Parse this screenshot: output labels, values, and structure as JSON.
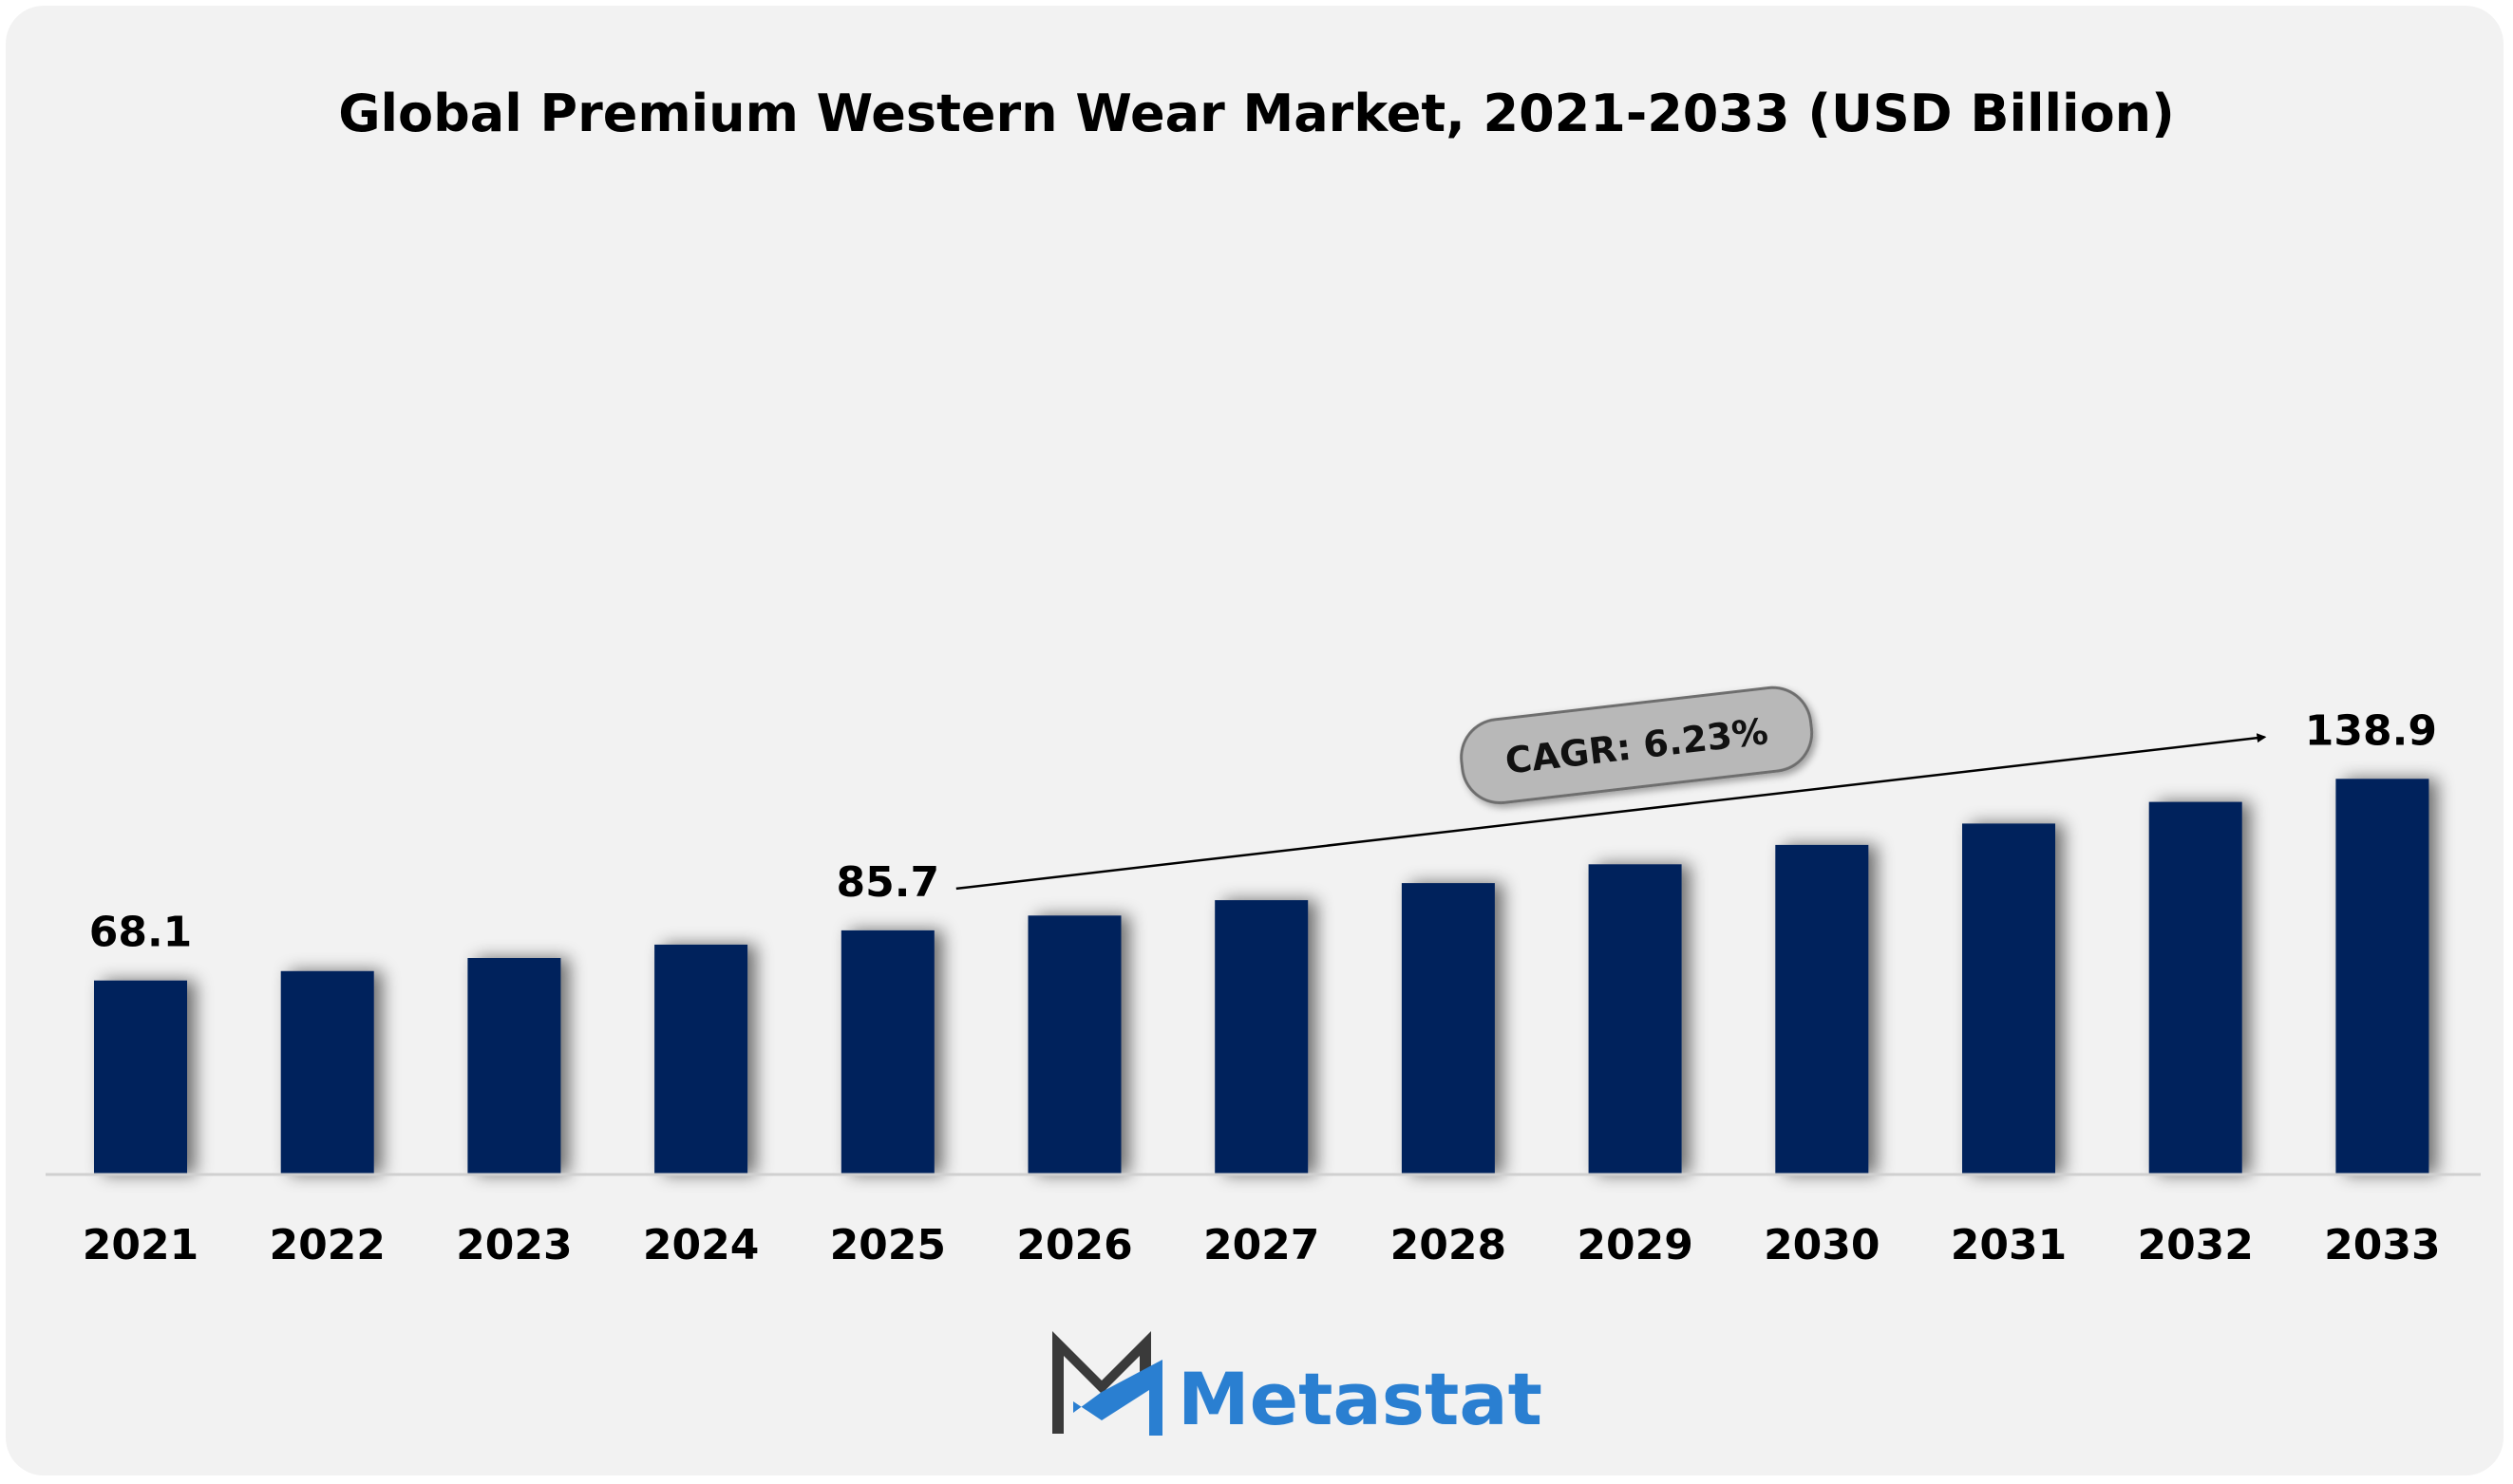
{
  "title": "Global Premium Western Wear Market, 2021-2033 (USD Billion)",
  "chart_data": {
    "type": "bar",
    "title": "Global Premium Western Wear Market, 2021-2033 (USD Billion)",
    "categories": [
      "2021",
      "2022",
      "2023",
      "2024",
      "2025",
      "2026",
      "2027",
      "2028",
      "2029",
      "2030",
      "2031",
      "2032",
      "2033"
    ],
    "values": [
      68.1,
      71.4,
      76.0,
      80.7,
      85.7,
      90.9,
      96.3,
      102.3,
      108.9,
      115.7,
      123.2,
      130.8,
      138.9
    ],
    "data_labels": [
      {
        "category": "2021",
        "text": "68.1"
      },
      {
        "category": "2025",
        "text": "85.7"
      },
      {
        "category": "2033",
        "text": "138.9"
      }
    ],
    "annotation": "CAGR: 6.23%",
    "ylim": [
      0,
      150
    ],
    "grid": false,
    "legend": "none",
    "bar_color": "#00205b"
  },
  "brand": {
    "name": "Metastat",
    "color": "#2a7fd1",
    "dark": "#3a3a3a"
  }
}
